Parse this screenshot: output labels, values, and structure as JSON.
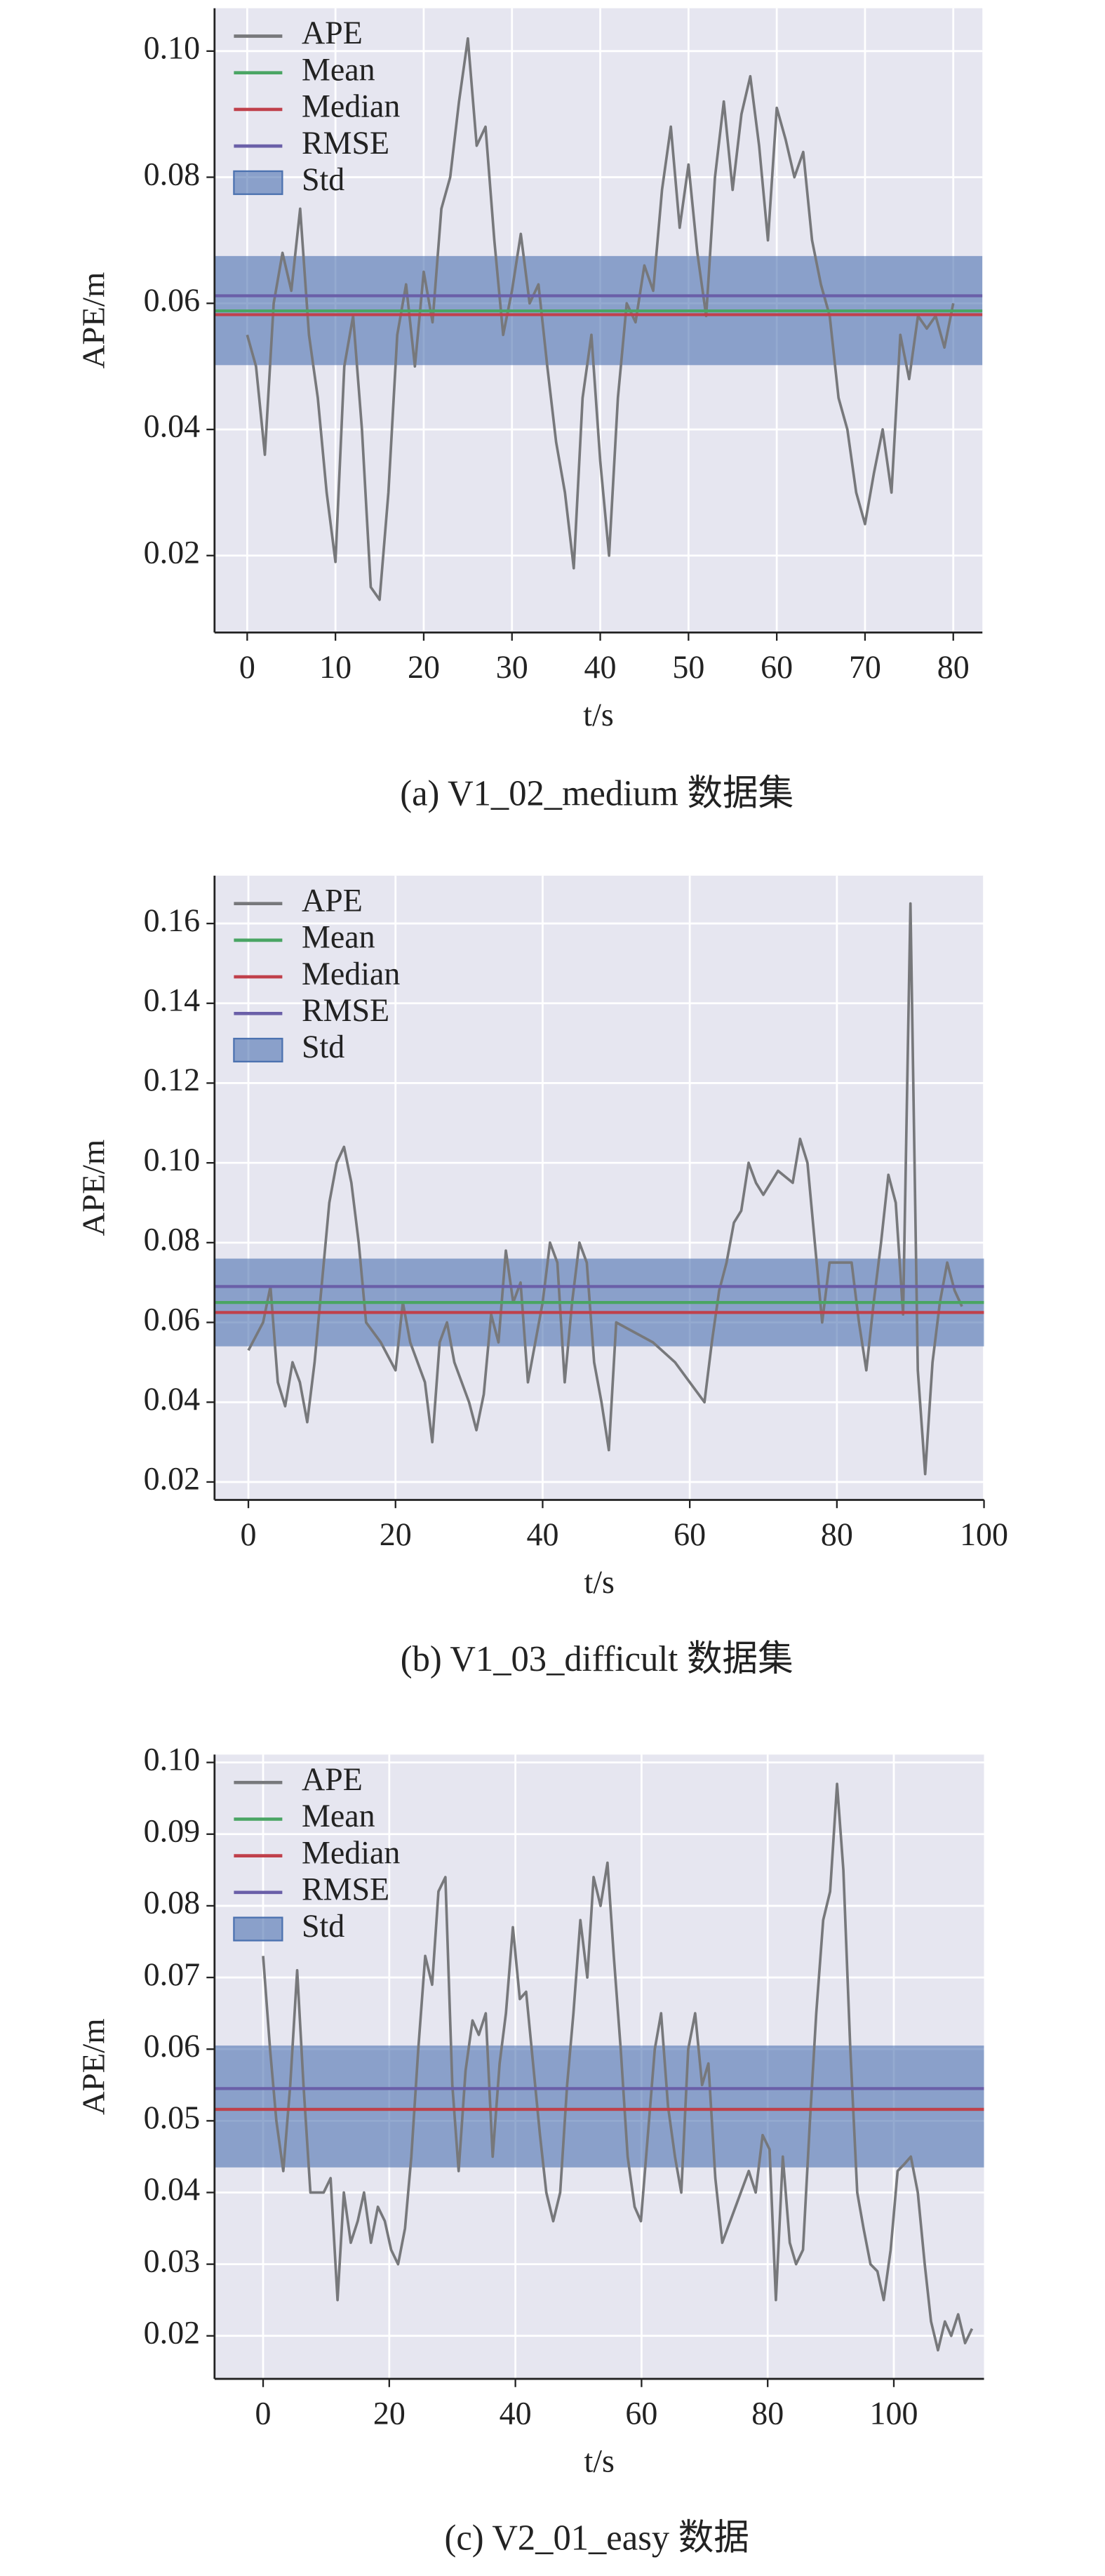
{
  "chart_data": [
    {
      "type": "line",
      "caption": "(a) V1_02_medium 数据集",
      "xlabel": "t/s",
      "ylabel": "APE/m",
      "x": [
        0,
        1,
        2,
        3,
        4,
        5,
        6,
        7,
        8,
        9,
        10,
        11,
        12,
        13,
        14,
        15,
        16,
        17,
        18,
        19,
        20,
        21,
        22,
        23,
        24,
        25,
        26,
        27,
        28,
        29,
        30,
        31,
        32,
        33,
        34,
        35,
        36,
        37,
        38,
        39,
        40,
        41,
        42,
        43,
        44,
        45,
        46,
        47,
        48,
        49,
        50,
        51,
        52,
        53,
        54,
        55,
        56,
        57,
        58,
        59,
        60,
        61,
        62,
        63,
        64,
        65,
        66,
        67,
        68,
        69,
        70,
        71,
        72,
        73,
        74,
        75,
        76,
        77,
        78,
        79,
        80
      ],
      "series": [
        {
          "name": "APE",
          "color": "#77787b",
          "values": [
            0.055,
            0.05,
            0.036,
            0.06,
            0.068,
            0.062,
            0.075,
            0.055,
            0.045,
            0.03,
            0.019,
            0.05,
            0.058,
            0.04,
            0.015,
            0.013,
            0.03,
            0.055,
            0.063,
            0.05,
            0.065,
            0.057,
            0.075,
            0.08,
            0.092,
            0.102,
            0.085,
            0.088,
            0.07,
            0.055,
            0.062,
            0.071,
            0.06,
            0.063,
            0.05,
            0.038,
            0.03,
            0.018,
            0.045,
            0.055,
            0.035,
            0.02,
            0.045,
            0.06,
            0.057,
            0.066,
            0.062,
            0.078,
            0.088,
            0.072,
            0.082,
            0.068,
            0.058,
            0.08,
            0.092,
            0.078,
            0.09,
            0.096,
            0.085,
            0.07,
            0.091,
            0.086,
            0.08,
            0.084,
            0.07,
            0.063,
            0.058,
            0.045,
            0.04,
            0.03,
            0.025,
            0.033,
            0.04,
            0.03,
            0.055,
            0.048,
            0.058,
            0.056,
            0.058,
            0.053,
            0.06
          ]
        }
      ],
      "reference_lines": [
        {
          "name": "Mean",
          "color": "#4aa564",
          "value": 0.0588
        },
        {
          "name": "Median",
          "color": "#c0404b",
          "value": 0.0582
        },
        {
          "name": "RMSE",
          "color": "#6a5fa8",
          "value": 0.0612
        }
      ],
      "band": {
        "name": "Std",
        "color": "#4c72b0",
        "range": [
          0.0502,
          0.0675
        ]
      },
      "xlim": [
        -3.7,
        83.3
      ],
      "ylim": [
        0.0078,
        0.1068
      ],
      "xticks": [
        0,
        10,
        20,
        30,
        40,
        50,
        60,
        70,
        80
      ],
      "yticks": [
        0.02,
        0.04,
        0.06,
        0.08,
        {
          "value": 0.1,
          "label": "0.10"
        }
      ],
      "grid": true,
      "legend": "upper left"
    },
    {
      "type": "line",
      "caption": "(b) V1_03_difficult 数据集",
      "xlabel": "t/s",
      "ylabel": "APE/m",
      "x": [
        0,
        2,
        3,
        4,
        5,
        6,
        7,
        8,
        9,
        10,
        11,
        12,
        13,
        14,
        15,
        16,
        18,
        20,
        21,
        22,
        24,
        25,
        26,
        27,
        28,
        30,
        31,
        32,
        33,
        34,
        35,
        36,
        37,
        38,
        39,
        40,
        41,
        42,
        43,
        44,
        45,
        46,
        47,
        48,
        49,
        50,
        52,
        55,
        58,
        60,
        62,
        63,
        64,
        65,
        66,
        67,
        68,
        69,
        70,
        72,
        74,
        75,
        76,
        77,
        78,
        79,
        82,
        83,
        84,
        85,
        86,
        87,
        88,
        89,
        90,
        91,
        92,
        93,
        94,
        95,
        96,
        97
      ],
      "series": [
        {
          "name": "APE",
          "color": "#77787b",
          "values": [
            0.053,
            0.06,
            0.069,
            0.045,
            0.039,
            0.05,
            0.045,
            0.035,
            0.05,
            0.07,
            0.09,
            0.1,
            0.104,
            0.095,
            0.08,
            0.06,
            0.055,
            0.048,
            0.065,
            0.055,
            0.045,
            0.03,
            0.055,
            0.06,
            0.05,
            0.04,
            0.033,
            0.042,
            0.062,
            0.055,
            0.078,
            0.065,
            0.07,
            0.045,
            0.055,
            0.065,
            0.08,
            0.075,
            0.045,
            0.065,
            0.08,
            0.075,
            0.05,
            0.04,
            0.028,
            0.06,
            0.058,
            0.055,
            0.05,
            0.045,
            0.04,
            0.055,
            0.068,
            0.075,
            0.085,
            0.088,
            0.1,
            0.095,
            0.092,
            0.098,
            0.095,
            0.106,
            0.1,
            0.08,
            0.06,
            0.075,
            0.075,
            0.06,
            0.048,
            0.065,
            0.08,
            0.097,
            0.09,
            0.062,
            0.165,
            0.048,
            0.022,
            0.05,
            0.065,
            0.075,
            0.068,
            0.064
          ]
        }
      ],
      "reference_lines": [
        {
          "name": "Mean",
          "color": "#4aa564",
          "value": 0.065
        },
        {
          "name": "Median",
          "color": "#c0404b",
          "value": 0.0625
        },
        {
          "name": "RMSE",
          "color": "#6a5fa8",
          "value": 0.069
        }
      ],
      "band": {
        "name": "Std",
        "color": "#4c72b0",
        "range": [
          0.054,
          0.076
        ]
      },
      "xlim": [
        -4.6,
        100
      ],
      "ylim": [
        0.0155,
        0.172
      ],
      "xticks": [
        0,
        20,
        40,
        60,
        80,
        100
      ],
      "yticks": [
        0.02,
        0.04,
        0.06,
        0.08,
        {
          "value": 0.1,
          "label": "0.10"
        },
        0.12,
        0.14,
        0.16
      ],
      "grid": true,
      "legend": "upper left"
    },
    {
      "type": "line",
      "caption": "(c) V2_01_easy 数据",
      "xlabel": "t/s",
      "ylabel": "APE/m",
      "x": [
        0,
        1.1,
        2.1,
        3.2,
        4.3,
        5.4,
        6.4,
        7.5,
        9.6,
        10.7,
        11.8,
        12.8,
        13.9,
        15,
        16,
        17.1,
        18.2,
        19.3,
        20.3,
        21.4,
        22.5,
        23.5,
        24.6,
        25.7,
        26.8,
        27.8,
        28.9,
        30,
        31,
        32.1,
        33.2,
        34.2,
        35.3,
        36.4,
        37.5,
        38.5,
        39.6,
        40.7,
        41.7,
        42.8,
        43.9,
        44.9,
        46,
        47.1,
        48.2,
        49.2,
        50.3,
        51.4,
        52.4,
        53.5,
        54.6,
        55.6,
        56.7,
        57.8,
        58.9,
        59.9,
        61,
        62.1,
        63.1,
        64.2,
        65.3,
        66.3,
        67.4,
        68.5,
        69.6,
        70.6,
        71.7,
        72.8,
        74.9,
        77,
        78.1,
        79.2,
        80.3,
        81.3,
        82.4,
        83.5,
        84.5,
        85.6,
        86.7,
        87.7,
        88.8,
        89.9,
        91,
        92,
        93.1,
        94.2,
        95.2,
        96.3,
        97.4,
        98.4,
        99.5,
        100.6,
        101.7,
        102.7,
        103.8,
        104.9,
        105.9,
        107,
        108.1,
        109.1,
        110.2,
        111.3,
        112.4
      ],
      "series": [
        {
          "name": "APE",
          "color": "#77787b",
          "values": [
            0.073,
            0.06,
            0.05,
            0.043,
            0.055,
            0.071,
            0.055,
            0.04,
            0.04,
            0.042,
            0.025,
            0.04,
            0.033,
            0.036,
            0.04,
            0.033,
            0.038,
            0.036,
            0.032,
            0.03,
            0.035,
            0.045,
            0.06,
            0.073,
            0.069,
            0.082,
            0.084,
            0.055,
            0.043,
            0.057,
            0.064,
            0.062,
            0.065,
            0.045,
            0.058,
            0.065,
            0.077,
            0.067,
            0.068,
            0.058,
            0.048,
            0.04,
            0.036,
            0.04,
            0.055,
            0.065,
            0.078,
            0.07,
            0.084,
            0.08,
            0.086,
            0.073,
            0.06,
            0.045,
            0.038,
            0.036,
            0.048,
            0.06,
            0.065,
            0.052,
            0.045,
            0.04,
            0.06,
            0.065,
            0.055,
            0.058,
            0.042,
            0.033,
            0.038,
            0.043,
            0.04,
            0.048,
            0.046,
            0.025,
            0.045,
            0.033,
            0.03,
            0.032,
            0.05,
            0.065,
            0.078,
            0.082,
            0.097,
            0.085,
            0.06,
            0.04,
            0.035,
            0.03,
            0.029,
            0.025,
            0.032,
            0.043,
            0.044,
            0.045,
            0.04,
            0.03,
            0.022,
            0.018,
            0.022,
            0.02,
            0.023,
            0.019,
            0.021
          ]
        }
      ],
      "reference_lines": [
        {
          "name": "Mean",
          "color": "#4aa564",
          "value": 0.0516
        },
        {
          "name": "Median",
          "color": "#c0404b",
          "value": 0.0516
        },
        {
          "name": "RMSE",
          "color": "#6a5fa8",
          "value": 0.0545
        }
      ],
      "band": {
        "name": "Std",
        "color": "#4c72b0",
        "range": [
          0.0435,
          0.0605
        ]
      },
      "xlim": [
        -7.7,
        114.3
      ],
      "ylim": [
        0.014,
        0.1011
      ],
      "xticks": [
        0,
        20,
        40,
        60,
        80,
        100
      ],
      "yticks": [
        0.02,
        0.03,
        0.04,
        0.05,
        0.06,
        0.07,
        0.08,
        0.09,
        {
          "value": 0.1,
          "label": "0.10"
        }
      ],
      "grid": true,
      "legend": "upper left"
    }
  ]
}
